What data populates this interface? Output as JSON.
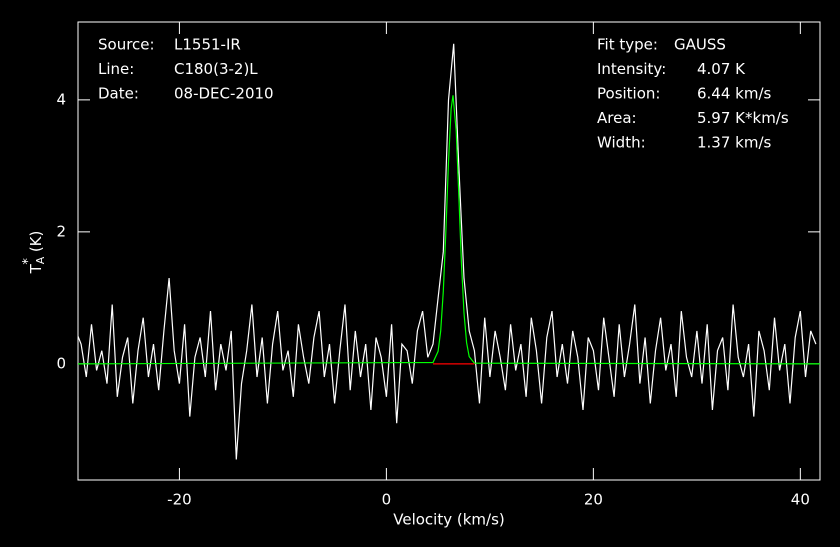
{
  "chart_data": {
    "type": "line",
    "xlabel": "Velocity (km/s)",
    "ylabel": {
      "main": "T",
      "sub": "A",
      "sup": "*",
      "unit": "(K)"
    },
    "info_left": [
      {
        "label": "Source:",
        "value": "L1551-IR"
      },
      {
        "label": "Line:",
        "value": "C180(3-2)L"
      },
      {
        "label": "Date:",
        "value": "08-DEC-2010"
      }
    ],
    "info_right": [
      {
        "label": "Fit type:",
        "value": "GAUSS"
      },
      {
        "label": "Intensity:",
        "value": "4.07 K"
      },
      {
        "label": "Position:",
        "value": "6.44 km/s"
      },
      {
        "label": "Area:",
        "value": "5.97 K*km/s"
      },
      {
        "label": "Width:",
        "value": "1.37 km/s"
      }
    ],
    "xlim": [
      -29.8,
      41.9
    ],
    "ylim": [
      -1.76,
      5.18
    ],
    "xticks": [
      -20,
      0,
      20,
      40
    ],
    "yticks": [
      0,
      2,
      4
    ],
    "series": [
      {
        "color": "#ffffff",
        "x": [
          -30,
          -29.5,
          -29,
          -28.5,
          -28,
          -27.5,
          -27,
          -26.5,
          -26,
          -25.5,
          -25,
          -24.5,
          -24,
          -23.5,
          -23,
          -22.5,
          -22,
          -21.5,
          -21,
          -20.5,
          -20,
          -19.5,
          -19,
          -18.5,
          -18,
          -17.5,
          -17,
          -16.5,
          -16,
          -15.5,
          -15,
          -14.5,
          -14,
          -13.5,
          -13,
          -12.5,
          -12,
          -11.5,
          -11,
          -10.5,
          -10,
          -9.5,
          -9,
          -8.5,
          -8,
          -7.5,
          -7,
          -6.5,
          -6,
          -5.5,
          -5,
          -4.5,
          -4,
          -3.5,
          -3,
          -2.5,
          -2,
          -1.5,
          -1,
          -0.5,
          0,
          0.5,
          1,
          1.5,
          2,
          2.5,
          3,
          3.5,
          4,
          4.5,
          5,
          5.5,
          6,
          6.5,
          7,
          7.5,
          8,
          8.5,
          9,
          9.5,
          10,
          10.5,
          11,
          11.5,
          12,
          12.5,
          13,
          13.5,
          14,
          14.5,
          15,
          15.5,
          16,
          16.5,
          17,
          17.5,
          18,
          18.5,
          19,
          19.5,
          20,
          20.5,
          21,
          21.5,
          22,
          22.5,
          23,
          23.5,
          24,
          24.5,
          25,
          25.5,
          26,
          26.5,
          27,
          27.5,
          28,
          28.5,
          29,
          29.5,
          30,
          30.5,
          31,
          31.5,
          32,
          32.5,
          33,
          33.5,
          34,
          34.5,
          35,
          35.5,
          36,
          36.5,
          37,
          37.5,
          38,
          38.5,
          39,
          39.5,
          40,
          40.5,
          41,
          41.5
        ],
        "values": [
          0.5,
          0.3,
          -0.2,
          0.6,
          -0.1,
          0.2,
          -0.3,
          0.9,
          -0.5,
          0.1,
          0.4,
          -0.6,
          0.2,
          0.7,
          -0.2,
          0.3,
          -0.4,
          0.5,
          1.3,
          0.2,
          -0.3,
          0.6,
          -0.8,
          0.1,
          0.4,
          -0.2,
          0.8,
          -0.4,
          0.3,
          -0.1,
          0.5,
          -1.45,
          -0.3,
          0.2,
          0.9,
          -0.2,
          0.4,
          -0.6,
          0.3,
          0.8,
          -0.1,
          0.2,
          -0.5,
          0.6,
          0.1,
          -0.3,
          0.4,
          0.8,
          -0.2,
          0.3,
          -0.6,
          0.2,
          0.9,
          -0.4,
          0.5,
          -0.2,
          0.3,
          -0.7,
          0.4,
          0.1,
          -0.5,
          0.6,
          -0.9,
          0.3,
          0.2,
          -0.3,
          0.5,
          0.8,
          0.1,
          0.3,
          1.0,
          1.7,
          4.0,
          4.85,
          3.0,
          1.3,
          0.5,
          0.2,
          -0.6,
          0.7,
          -0.2,
          0.5,
          0.1,
          -0.4,
          0.6,
          -0.1,
          0.3,
          -0.5,
          0.7,
          0.2,
          -0.6,
          0.4,
          0.8,
          -0.2,
          0.3,
          -0.3,
          0.5,
          0.1,
          -0.7,
          0.4,
          0.2,
          -0.4,
          0.7,
          0.1,
          -0.5,
          0.6,
          -0.2,
          0.3,
          0.9,
          -0.3,
          0.4,
          -0.6,
          0.2,
          0.7,
          -0.1,
          0.3,
          -0.5,
          0.8,
          0.1,
          -0.2,
          0.5,
          -0.3,
          0.6,
          -0.7,
          0.2,
          0.4,
          -0.4,
          0.9,
          0.1,
          -0.2,
          0.3,
          -0.8,
          0.5,
          0.2,
          -0.4,
          0.7,
          -0.1,
          0.3,
          -0.6,
          0.4,
          0.8,
          -0.2,
          0.5,
          0.3
        ]
      },
      {
        "color": "#00ff00",
        "x": [
          -29.8,
          4.5,
          5,
          5.25,
          5.5,
          5.75,
          6,
          6.25,
          6.44,
          6.75,
          7,
          7.25,
          7.5,
          7.75,
          8,
          8.5,
          41.9
        ],
        "values": [
          0,
          0.02,
          0.19,
          0.5,
          1.1,
          2.02,
          3.06,
          3.86,
          4.07,
          3.53,
          2.56,
          1.54,
          0.77,
          0.32,
          0.11,
          0.01,
          0
        ]
      },
      {
        "color": "#ff0000",
        "x": [
          4.5,
          8.5
        ],
        "values": [
          0,
          0
        ]
      }
    ]
  }
}
